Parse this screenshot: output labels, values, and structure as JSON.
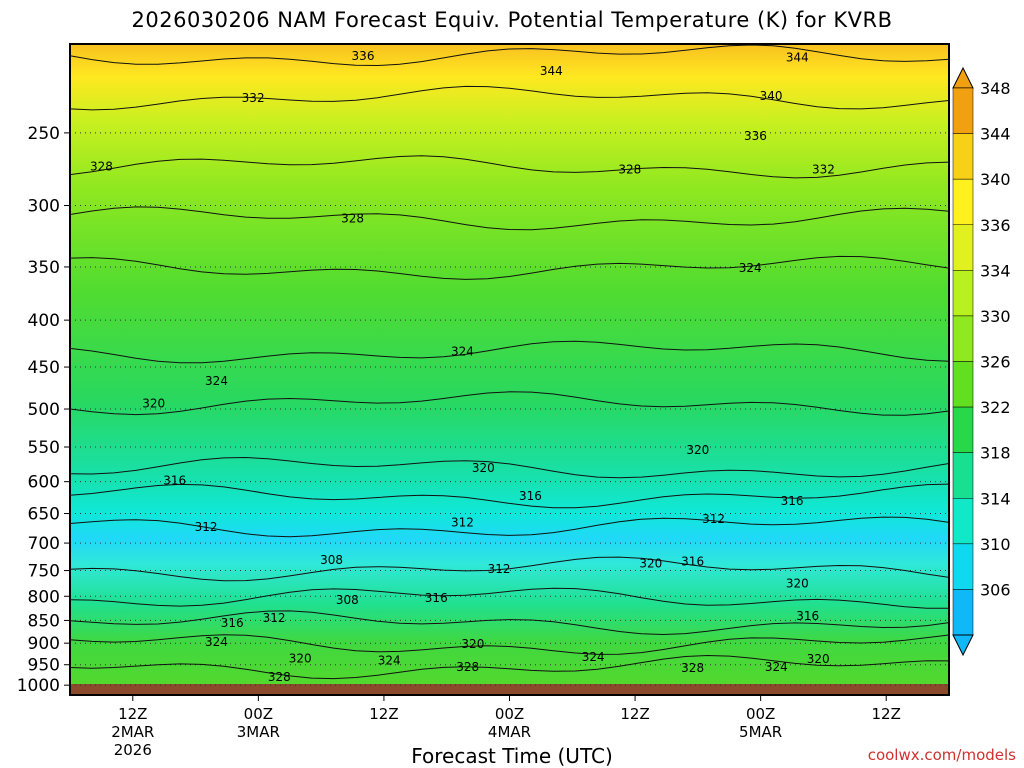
{
  "title": "2026030206 NAM Forecast Equiv. Potential Temperature (K) for KVRB",
  "xlabel": "Forecast Time (UTC)",
  "credit": "coolwx.com/models",
  "colors": {
    "ground": "#8b4a2b",
    "contour": "#111111"
  },
  "chart_data": {
    "type": "heatmap",
    "title": "2026030206 NAM Forecast Equiv. Potential Temperature (K) for KVRB",
    "xlabel": "Forecast Time (UTC)",
    "ylabel": "",
    "y_scale": "log",
    "y_ticks": [
      250,
      300,
      350,
      400,
      450,
      500,
      550,
      600,
      650,
      700,
      750,
      800,
      850,
      900,
      950,
      1000
    ],
    "ylim": [
      1025,
      200
    ],
    "x_range_hours": [
      0,
      84
    ],
    "x_ticks": [
      {
        "hours": 6,
        "lines": [
          "12Z",
          "2MAR",
          "2026"
        ]
      },
      {
        "hours": 18,
        "lines": [
          "00Z",
          "3MAR"
        ]
      },
      {
        "hours": 30,
        "lines": [
          "12Z"
        ]
      },
      {
        "hours": 42,
        "lines": [
          "00Z",
          "4MAR"
        ]
      },
      {
        "hours": 54,
        "lines": [
          "12Z"
        ]
      },
      {
        "hours": 66,
        "lines": [
          "00Z",
          "5MAR"
        ]
      },
      {
        "hours": 78,
        "lines": [
          "12Z"
        ]
      }
    ],
    "colorbar": {
      "labels": [
        348,
        344,
        340,
        336,
        334,
        330,
        326,
        322,
        318,
        314,
        310,
        306
      ],
      "colors": [
        "#f0a010",
        "#f8d018",
        "#fff020",
        "#e0f020",
        "#b8f020",
        "#90e820",
        "#60e020",
        "#28d848",
        "#18e090",
        "#10e8c8",
        "#10d8f0",
        "#10b8f8"
      ]
    },
    "contour_labels": [
      {
        "text": "336",
        "hours": 28.0,
        "p": 206
      },
      {
        "text": "344",
        "hours": 46.0,
        "p": 214
      },
      {
        "text": "344",
        "hours": 69.5,
        "p": 207
      },
      {
        "text": "332",
        "hours": 17.5,
        "p": 229
      },
      {
        "text": "340",
        "hours": 67.0,
        "p": 228
      },
      {
        "text": "336",
        "hours": 65.5,
        "p": 252
      },
      {
        "text": "328",
        "hours": 3.0,
        "p": 272
      },
      {
        "text": "328",
        "hours": 53.5,
        "p": 274
      },
      {
        "text": "332",
        "hours": 72.0,
        "p": 274
      },
      {
        "text": "328",
        "hours": 27.0,
        "p": 310
      },
      {
        "text": "324",
        "hours": 65.0,
        "p": 351
      },
      {
        "text": "324",
        "hours": 37.5,
        "p": 433
      },
      {
        "text": "324",
        "hours": 14.0,
        "p": 466
      },
      {
        "text": "320",
        "hours": 8.0,
        "p": 493
      },
      {
        "text": "320",
        "hours": 60.0,
        "p": 554
      },
      {
        "text": "320",
        "hours": 39.5,
        "p": 580
      },
      {
        "text": "316",
        "hours": 10.0,
        "p": 598
      },
      {
        "text": "316",
        "hours": 44.0,
        "p": 622
      },
      {
        "text": "316",
        "hours": 69.0,
        "p": 630
      },
      {
        "text": "312",
        "hours": 13.0,
        "p": 672
      },
      {
        "text": "312",
        "hours": 37.5,
        "p": 665
      },
      {
        "text": "312",
        "hours": 61.5,
        "p": 659
      },
      {
        "text": "308",
        "hours": 25.0,
        "p": 730
      },
      {
        "text": "312",
        "hours": 41.0,
        "p": 747
      },
      {
        "text": "320",
        "hours": 55.5,
        "p": 737
      },
      {
        "text": "316",
        "hours": 59.5,
        "p": 733
      },
      {
        "text": "316",
        "hours": 35.0,
        "p": 803
      },
      {
        "text": "308",
        "hours": 26.5,
        "p": 808
      },
      {
        "text": "320",
        "hours": 69.5,
        "p": 775
      },
      {
        "text": "316",
        "hours": 70.5,
        "p": 841
      },
      {
        "text": "316",
        "hours": 15.5,
        "p": 855
      },
      {
        "text": "312",
        "hours": 19.5,
        "p": 845
      },
      {
        "text": "324",
        "hours": 14.0,
        "p": 897
      },
      {
        "text": "320",
        "hours": 38.5,
        "p": 902
      },
      {
        "text": "320",
        "hours": 22.0,
        "p": 935
      },
      {
        "text": "324",
        "hours": 30.5,
        "p": 940
      },
      {
        "text": "324",
        "hours": 50.0,
        "p": 932
      },
      {
        "text": "320",
        "hours": 71.5,
        "p": 936
      },
      {
        "text": "328",
        "hours": 38.0,
        "p": 955
      },
      {
        "text": "328",
        "hours": 59.5,
        "p": 958
      },
      {
        "text": "324",
        "hours": 67.5,
        "p": 955
      },
      {
        "text": "328",
        "hours": 20.0,
        "p": 980
      }
    ]
  }
}
